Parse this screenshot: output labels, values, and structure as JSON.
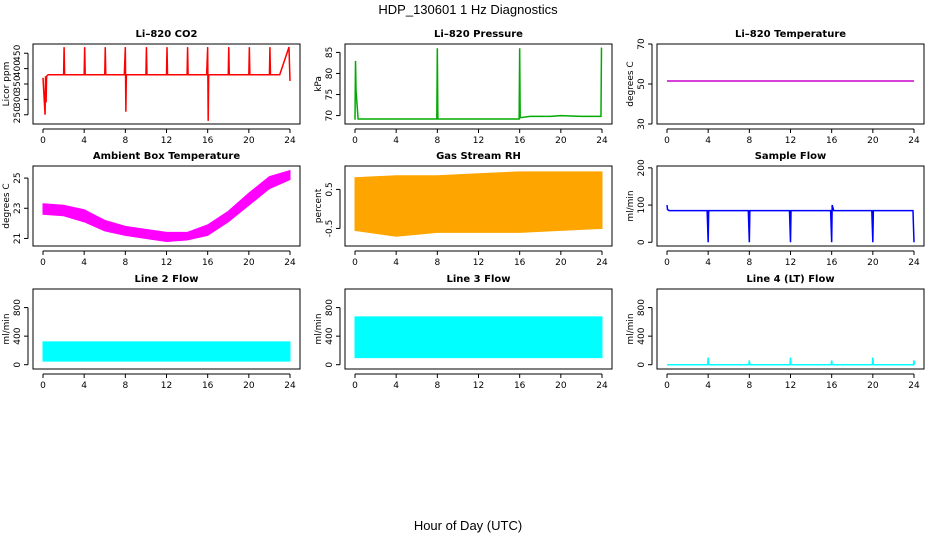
{
  "figure": {
    "title": "HDP_130601 1 Hz Diagnostics",
    "xlabel": "Hour of Day (UTC)"
  },
  "chart_data": [
    {
      "id": "co2",
      "type": "line",
      "title": "Li–820 CO2",
      "ylabel": "Licor ppm",
      "color": "#ff0000",
      "xlim": [
        0,
        24
      ],
      "ylim": [
        220,
        480
      ],
      "x_ticks": [
        0,
        4,
        8,
        12,
        16,
        20,
        24
      ],
      "y_ticks": [
        250,
        300,
        350,
        400,
        450
      ],
      "series": [
        {
          "x": [
            0,
            0.2,
            0.25,
            0.3,
            0.35,
            0.5,
            1.5,
            2.0,
            2.05,
            2.1,
            3,
            4.0,
            4.05,
            4.1,
            5,
            6.0,
            6.05,
            6.1,
            7,
            7.9,
            8.0,
            8.05,
            8.1,
            9,
            10.0,
            10.05,
            10.1,
            11,
            12.0,
            12.05,
            12.1,
            13,
            14.0,
            14.05,
            14.1,
            15,
            15.9,
            16.0,
            16.05,
            16.1,
            17,
            18.0,
            18.05,
            18.1,
            19,
            20.0,
            20.05,
            20.1,
            21,
            22.0,
            22.05,
            22.1,
            23,
            23.9,
            24.0
          ],
          "y": [
            370,
            250,
            375,
            290,
            375,
            380,
            380,
            380,
            470,
            380,
            380,
            380,
            470,
            380,
            380,
            380,
            470,
            380,
            380,
            380,
            470,
            260,
            380,
            380,
            380,
            470,
            380,
            380,
            380,
            470,
            380,
            380,
            380,
            470,
            380,
            380,
            380,
            470,
            230,
            380,
            380,
            380,
            470,
            380,
            380,
            380,
            470,
            380,
            380,
            380,
            470,
            380,
            380,
            470,
            360
          ]
        }
      ]
    },
    {
      "id": "pressure",
      "type": "line",
      "title": "Li–820 Pressure",
      "ylabel": "kPa",
      "color": "#00aa00",
      "xlim": [
        0,
        24
      ],
      "ylim": [
        68,
        87
      ],
      "x_ticks": [
        0,
        4,
        8,
        12,
        16,
        20,
        24
      ],
      "y_ticks": [
        70,
        75,
        80,
        85
      ],
      "series": [
        {
          "x": [
            0,
            0.05,
            0.1,
            0.3,
            2,
            4,
            7.95,
            8.0,
            8.05,
            10,
            12,
            14,
            15.95,
            16.0,
            16.05,
            17,
            19,
            20,
            22,
            23.9,
            23.95,
            24.0
          ],
          "y": [
            69,
            83,
            76,
            69.2,
            69.2,
            69.2,
            69.2,
            86,
            69.2,
            69.2,
            69.2,
            69.2,
            69.2,
            86,
            69.5,
            69.8,
            69.8,
            70,
            69.8,
            69.8,
            86,
            86
          ]
        }
      ]
    },
    {
      "id": "temperature",
      "type": "line",
      "title": "Li–820 Temperature",
      "ylabel": "degrees C",
      "color": "#cc00cc",
      "xlim": [
        0,
        24
      ],
      "ylim": [
        30,
        70
      ],
      "x_ticks": [
        0,
        4,
        8,
        12,
        16,
        20,
        24
      ],
      "y_ticks": [
        30,
        50,
        70
      ],
      "series": [
        {
          "x": [
            0,
            24
          ],
          "y": [
            51.5,
            51.5
          ]
        }
      ]
    },
    {
      "id": "ambient",
      "type": "area",
      "title": "Ambient Box Temperature",
      "ylabel": "degrees C",
      "color": "#ff00ff",
      "xlim": [
        0,
        24
      ],
      "ylim": [
        20.5,
        25.8
      ],
      "x_ticks": [
        0,
        4,
        8,
        12,
        16,
        20,
        24
      ],
      "y_ticks": [
        21,
        23,
        25
      ],
      "series": [
        {
          "x": [
            0,
            2,
            4,
            6,
            8,
            10,
            12,
            14,
            16,
            18,
            20,
            22,
            24
          ],
          "lower": [
            22.6,
            22.5,
            22.1,
            21.5,
            21.2,
            21.0,
            20.8,
            20.9,
            21.2,
            22.1,
            23.2,
            24.3,
            24.9
          ],
          "upper": [
            23.3,
            23.2,
            22.9,
            22.2,
            21.8,
            21.6,
            21.4,
            21.4,
            21.9,
            22.8,
            24.0,
            25.1,
            25.5
          ]
        }
      ]
    },
    {
      "id": "rh",
      "type": "area",
      "title": "Gas Stream RH",
      "ylabel": "percent",
      "color": "#ffa500",
      "xlim": [
        0,
        24
      ],
      "ylim": [
        -0.95,
        1.1
      ],
      "x_ticks": [
        0,
        4,
        8,
        12,
        16,
        20,
        24
      ],
      "y_ticks": [
        -0.5,
        0.5
      ],
      "series": [
        {
          "x": [
            0,
            4,
            8,
            12,
            16,
            20,
            24
          ],
          "lower": [
            -0.55,
            -0.7,
            -0.6,
            -0.6,
            -0.6,
            -0.55,
            -0.5
          ],
          "upper": [
            0.8,
            0.85,
            0.85,
            0.9,
            0.95,
            0.95,
            0.95
          ]
        }
      ]
    },
    {
      "id": "sampleflow",
      "type": "line",
      "title": "Sample Flow",
      "ylabel": "ml/min",
      "color": "#0000ff",
      "xlim": [
        0,
        24
      ],
      "ylim": [
        -10,
        205
      ],
      "x_ticks": [
        0,
        4,
        8,
        12,
        16,
        20,
        24
      ],
      "y_ticks": [
        0,
        100,
        200
      ],
      "series": [
        {
          "x": [
            0,
            0.05,
            0.2,
            3.9,
            4.0,
            4.05,
            4.2,
            7.9,
            8.0,
            8.05,
            8.2,
            11.9,
            12.0,
            12.05,
            12.2,
            15.9,
            16.0,
            16.05,
            16.2,
            19.9,
            20.0,
            20.05,
            20.2,
            23.9,
            24.0
          ],
          "y": [
            100,
            88,
            85,
            85,
            0,
            85,
            85,
            85,
            0,
            85,
            85,
            85,
            0,
            85,
            85,
            85,
            0,
            100,
            85,
            85,
            0,
            85,
            85,
            85,
            0
          ]
        }
      ]
    },
    {
      "id": "line2",
      "type": "area",
      "title": "Line 2 Flow",
      "ylabel": "ml/min",
      "color": "#00ffff",
      "xlim": [
        0,
        24
      ],
      "ylim": [
        -60,
        1060
      ],
      "x_ticks": [
        0,
        4,
        8,
        12,
        16,
        20,
        24
      ],
      "y_ticks": [
        0,
        400,
        800
      ],
      "series": [
        {
          "x": [
            0,
            24
          ],
          "lower": [
            50,
            50
          ],
          "upper": [
            320,
            320
          ]
        }
      ]
    },
    {
      "id": "line3",
      "type": "area",
      "title": "Line 3 Flow",
      "ylabel": "ml/min",
      "color": "#00ffff",
      "xlim": [
        0,
        24
      ],
      "ylim": [
        -60,
        1060
      ],
      "x_ticks": [
        0,
        4,
        8,
        12,
        16,
        20,
        24
      ],
      "y_ticks": [
        0,
        400,
        800
      ],
      "series": [
        {
          "x": [
            0,
            24
          ],
          "lower": [
            100,
            100
          ],
          "upper": [
            670,
            670
          ]
        }
      ]
    },
    {
      "id": "line4",
      "type": "line",
      "title": "Line 4 (LT) Flow",
      "ylabel": "ml/min",
      "color": "#00ffff",
      "xlim": [
        0,
        24
      ],
      "ylim": [
        -60,
        1060
      ],
      "x_ticks": [
        0,
        4,
        8,
        12,
        16,
        20,
        24
      ],
      "y_ticks": [
        0,
        400,
        800
      ],
      "series": [
        {
          "x": [
            0,
            3.95,
            4.0,
            4.05,
            7.95,
            8.0,
            8.05,
            11.95,
            12.0,
            12.05,
            15.95,
            16.0,
            16.05,
            19.95,
            20.0,
            20.05,
            23.95,
            24.0,
            24.05
          ],
          "y": [
            0,
            0,
            100,
            0,
            0,
            60,
            0,
            0,
            100,
            0,
            0,
            60,
            0,
            0,
            100,
            0,
            0,
            60,
            0
          ]
        }
      ]
    }
  ]
}
